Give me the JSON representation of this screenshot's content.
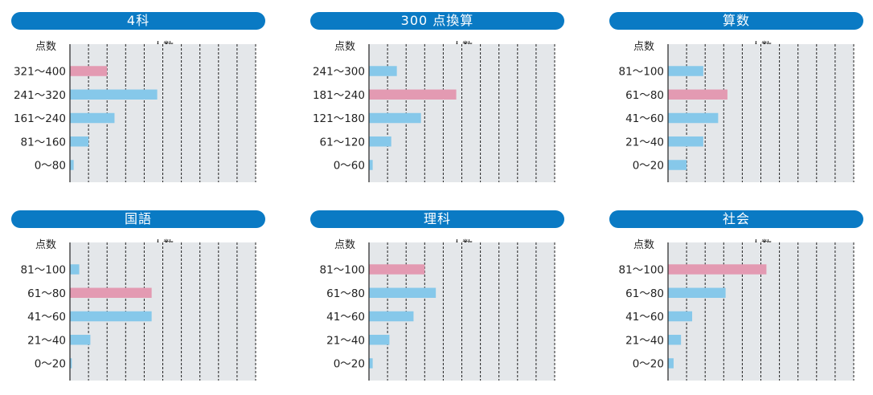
{
  "header_labels": {
    "score": "点数",
    "count": "人数"
  },
  "colors": {
    "title_bg": "#0a7ac4",
    "plot_bg": "#e4e7ea",
    "bar": "#86c8ea",
    "highlight": "#e39ab2"
  },
  "chart_data": [
    {
      "type": "bar",
      "orientation": "horizontal",
      "title": "4科",
      "xlabel": "人数",
      "ylabel": "点数",
      "categories": [
        "321～400",
        "241～320",
        "161～240",
        "81～160",
        "0～80"
      ],
      "values": [
        2.0,
        4.7,
        2.4,
        1.0,
        0.2
      ],
      "highlight_index": 0,
      "xlim": [
        0,
        10
      ],
      "grid": "dashed-vertical"
    },
    {
      "type": "bar",
      "orientation": "horizontal",
      "title": "300 点換算",
      "xlabel": "人数",
      "ylabel": "点数",
      "categories": [
        "241～300",
        "181～240",
        "121～180",
        "61～120",
        "0～60"
      ],
      "values": [
        1.5,
        4.7,
        2.8,
        1.2,
        0.2
      ],
      "highlight_index": 1,
      "xlim": [
        0,
        10
      ],
      "grid": "dashed-vertical"
    },
    {
      "type": "bar",
      "orientation": "horizontal",
      "title": "算数",
      "xlabel": "人数",
      "ylabel": "点数",
      "categories": [
        "81～100",
        "61～80",
        "41～60",
        "21～40",
        "0～20"
      ],
      "values": [
        1.9,
        3.2,
        2.7,
        1.9,
        1.0
      ],
      "highlight_index": 1,
      "xlim": [
        0,
        10
      ],
      "grid": "dashed-vertical"
    },
    {
      "type": "bar",
      "orientation": "horizontal",
      "title": "国語",
      "xlabel": "人数",
      "ylabel": "点数",
      "categories": [
        "81～100",
        "61～80",
        "41～60",
        "21～40",
        "0～20"
      ],
      "values": [
        0.5,
        4.4,
        4.4,
        1.1,
        0.1
      ],
      "highlight_index": 1,
      "xlim": [
        0,
        10
      ],
      "grid": "dashed-vertical"
    },
    {
      "type": "bar",
      "orientation": "horizontal",
      "title": "理科",
      "xlabel": "人数",
      "ylabel": "点数",
      "categories": [
        "81～100",
        "61～80",
        "41～60",
        "21～40",
        "0～20"
      ],
      "values": [
        3.0,
        3.6,
        2.4,
        1.1,
        0.2
      ],
      "highlight_index": 0,
      "xlim": [
        0,
        10
      ],
      "grid": "dashed-vertical"
    },
    {
      "type": "bar",
      "orientation": "horizontal",
      "title": "社会",
      "xlabel": "人数",
      "ylabel": "点数",
      "categories": [
        "81～100",
        "61～80",
        "41～60",
        "21～40",
        "0～20"
      ],
      "values": [
        5.3,
        3.1,
        1.3,
        0.7,
        0.3
      ],
      "highlight_index": 0,
      "xlim": [
        0,
        10
      ],
      "grid": "dashed-vertical"
    }
  ]
}
